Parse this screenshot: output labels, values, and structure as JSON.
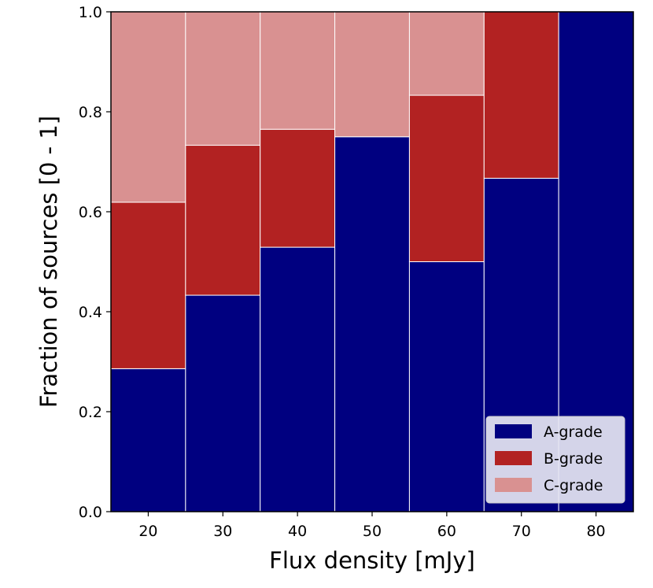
{
  "chart_data": {
    "type": "bar",
    "stacked": true,
    "categories": [
      "20",
      "30",
      "40",
      "50",
      "60",
      "70",
      "80"
    ],
    "x": [
      20,
      30,
      40,
      50,
      60,
      70,
      80
    ],
    "bin_width": 10,
    "xlim": [
      15,
      85
    ],
    "ylim": [
      0,
      1
    ],
    "xticks": [
      "20",
      "30",
      "40",
      "50",
      "60",
      "70",
      "80"
    ],
    "yticks": [
      "0.0",
      "0.2",
      "0.4",
      "0.6",
      "0.8",
      "1.0"
    ],
    "xlabel": "Flux density [mJy]",
    "ylabel": "Fraction of sources [0 - 1]",
    "grid": false,
    "legend": "bottom-right",
    "series": [
      {
        "name": "A-grade",
        "color": "#000080",
        "values": [
          0.286,
          0.433,
          0.529,
          0.75,
          0.5,
          0.667,
          1.0
        ]
      },
      {
        "name": "B-grade",
        "color": "#b22222",
        "values": [
          0.333,
          0.3,
          0.236,
          0.0,
          0.333,
          0.333,
          0.0
        ]
      },
      {
        "name": "C-grade",
        "color": "#d99191",
        "values": [
          0.381,
          0.267,
          0.235,
          0.25,
          0.167,
          0.0,
          0.0
        ]
      }
    ]
  }
}
